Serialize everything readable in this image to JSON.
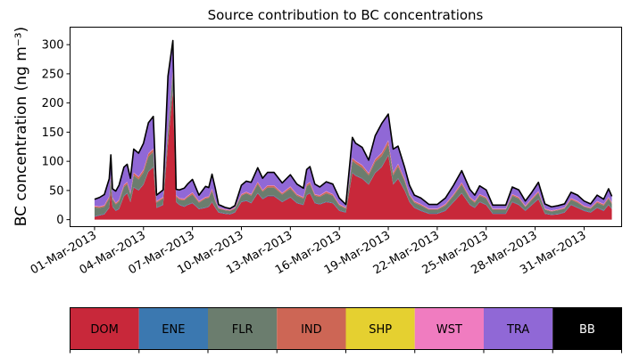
{
  "chart_data": {
    "type": "area",
    "stacked": true,
    "title": "Source contribution to BC concentrations",
    "ylabel": "BC concentration (ng m⁻³)",
    "xlabel": "",
    "ylim": [
      -12,
      330
    ],
    "yticks": [
      0,
      50,
      100,
      150,
      200,
      250,
      300
    ],
    "xticks": [
      "01-Mar-2013",
      "04-Mar-2013",
      "07-Mar-2013",
      "10-Mar-2013",
      "13-Mar-2013",
      "16-Mar-2013",
      "19-Mar-2013",
      "22-Mar-2013",
      "25-Mar-2013",
      "28-Mar-2013",
      "31-Mar-2013"
    ],
    "x_day_range": [
      0.0,
      31.7
    ],
    "xlim_days": [
      -1.5,
      32.3
    ],
    "time": [
      0.0,
      0.3,
      0.6,
      0.9,
      1.0,
      1.1,
      1.3,
      1.5,
      1.8,
      2.0,
      2.2,
      2.4,
      2.7,
      3.0,
      3.3,
      3.6,
      3.8,
      4.2,
      4.5,
      4.8,
      5.0,
      5.2,
      5.5,
      5.7,
      6.0,
      6.4,
      6.8,
      7.0,
      7.2,
      7.4,
      7.6,
      8.0,
      8.3,
      8.6,
      9.0,
      9.3,
      9.6,
      10.0,
      10.3,
      10.6,
      11.0,
      11.5,
      12.0,
      12.4,
      12.8,
      13.0,
      13.2,
      13.5,
      13.8,
      14.2,
      14.6,
      15.0,
      15.4,
      15.8,
      16.0,
      16.4,
      16.8,
      17.2,
      17.6,
      18.0,
      18.3,
      18.6,
      19.0,
      19.3,
      19.6,
      20.0,
      20.5,
      21.0,
      21.5,
      22.0,
      22.5,
      23.0,
      23.3,
      23.6,
      24.0,
      24.4,
      24.8,
      25.2,
      25.6,
      26.0,
      26.4,
      26.8,
      27.2,
      27.6,
      28.0,
      28.4,
      28.8,
      29.2,
      29.6,
      30.0,
      30.4,
      30.8,
      31.2,
      31.5,
      31.7
    ],
    "series": [
      {
        "name": "DOM",
        "color": "#c8283a",
        "values": [
          5,
          7,
          9,
          20,
          50,
          22,
          15,
          18,
          40,
          45,
          30,
          55,
          50,
          60,
          82,
          90,
          20,
          25,
          130,
          220,
          30,
          25,
          22,
          25,
          28,
          18,
          20,
          22,
          30,
          20,
          12,
          10,
          9,
          12,
          30,
          32,
          28,
          45,
          35,
          40,
          40,
          30,
          38,
          28,
          25,
          42,
          45,
          28,
          26,
          30,
          28,
          15,
          12,
          80,
          75,
          70,
          60,
          80,
          90,
          110,
          60,
          70,
          50,
          30,
          20,
          15,
          10,
          10,
          15,
          30,
          45,
          25,
          20,
          30,
          25,
          10,
          10,
          10,
          30,
          25,
          15,
          25,
          35,
          10,
          8,
          9,
          12,
          25,
          20,
          15,
          12,
          20,
          15,
          25,
          18
        ]
      },
      {
        "name": "ENE",
        "color": "#3b78b0",
        "values": [
          1,
          1,
          1,
          1,
          1,
          1,
          1,
          1,
          1,
          1,
          1,
          1,
          1,
          1,
          1,
          1,
          1,
          1,
          1,
          1,
          1,
          1,
          1,
          1,
          1,
          1,
          1,
          1,
          1,
          1,
          1,
          1,
          1,
          1,
          1,
          1,
          1,
          1,
          1,
          1,
          1,
          1,
          1,
          1,
          1,
          1,
          1,
          1,
          1,
          1,
          1,
          1,
          1,
          1,
          1,
          1,
          1,
          1,
          1,
          1,
          1,
          1,
          1,
          1,
          1,
          1,
          1,
          1,
          1,
          1,
          1,
          1,
          1,
          1,
          1,
          1,
          1,
          1,
          1,
          1,
          1,
          1,
          1,
          1,
          1,
          1,
          1,
          1,
          1,
          1,
          1,
          1,
          1,
          1,
          1
        ]
      },
      {
        "name": "FLR",
        "color": "#6b7d6e",
        "values": [
          15,
          12,
          12,
          15,
          20,
          12,
          10,
          12,
          15,
          15,
          12,
          20,
          18,
          20,
          25,
          25,
          8,
          10,
          20,
          30,
          8,
          8,
          10,
          12,
          14,
          10,
          15,
          14,
          18,
          10,
          6,
          5,
          5,
          6,
          10,
          12,
          12,
          15,
          12,
          14,
          14,
          12,
          14,
          12,
          10,
          14,
          15,
          12,
          12,
          14,
          12,
          8,
          6,
          20,
          20,
          18,
          15,
          18,
          18,
          18,
          15,
          20,
          15,
          10,
          8,
          8,
          6,
          6,
          8,
          10,
          14,
          10,
          8,
          10,
          10,
          6,
          6,
          6,
          10,
          10,
          6,
          8,
          10,
          6,
          5,
          6,
          6,
          8,
          8,
          6,
          6,
          8,
          8,
          10,
          8
        ]
      },
      {
        "name": "IND",
        "color": "#cd6655",
        "values": [
          2,
          2,
          2,
          3,
          4,
          2,
          2,
          2,
          3,
          3,
          2,
          4,
          4,
          4,
          5,
          5,
          2,
          2,
          4,
          5,
          2,
          2,
          2,
          2,
          3,
          2,
          2,
          2,
          3,
          2,
          1,
          1,
          1,
          1,
          2,
          2,
          2,
          3,
          2,
          3,
          3,
          2,
          3,
          2,
          2,
          3,
          3,
          2,
          2,
          3,
          2,
          2,
          1,
          4,
          4,
          4,
          3,
          4,
          5,
          6,
          4,
          4,
          3,
          2,
          2,
          2,
          1,
          1,
          2,
          2,
          3,
          2,
          2,
          2,
          2,
          1,
          1,
          1,
          2,
          2,
          1,
          2,
          2,
          1,
          1,
          1,
          1,
          2,
          2,
          1,
          1,
          2,
          2,
          2,
          2
        ]
      },
      {
        "name": "SHP",
        "color": "#e5d030",
        "values": [
          0,
          0,
          0,
          0,
          0,
          0,
          0,
          0,
          0,
          0,
          0,
          0,
          0,
          0,
          0,
          0,
          0,
          0,
          0,
          0,
          0,
          0,
          0,
          0,
          0,
          0,
          0,
          0,
          0,
          0,
          0,
          0,
          0,
          0,
          0,
          0,
          0,
          0,
          0,
          0,
          0,
          0,
          0,
          0,
          0,
          0,
          0,
          0,
          0,
          0,
          0,
          0,
          0,
          0,
          0,
          0,
          0,
          0,
          0,
          0,
          0,
          0,
          0,
          0,
          0,
          0,
          0,
          0,
          0,
          0,
          0,
          0,
          0,
          0,
          0,
          0,
          0,
          0,
          0,
          0,
          0,
          0,
          0,
          0,
          0,
          0,
          0,
          0,
          0,
          0,
          0,
          0,
          0,
          0,
          0
        ]
      },
      {
        "name": "WST",
        "color": "#f07cc0",
        "values": [
          1,
          1,
          1,
          1,
          1,
          1,
          1,
          1,
          1,
          1,
          1,
          1,
          1,
          1,
          1,
          1,
          1,
          1,
          1,
          1,
          1,
          1,
          1,
          1,
          1,
          1,
          1,
          1,
          1,
          1,
          1,
          1,
          1,
          1,
          1,
          1,
          1,
          1,
          1,
          1,
          1,
          1,
          1,
          1,
          1,
          1,
          1,
          1,
          1,
          1,
          1,
          1,
          1,
          1,
          1,
          1,
          1,
          1,
          1,
          1,
          1,
          1,
          1,
          1,
          1,
          1,
          1,
          1,
          1,
          1,
          1,
          1,
          1,
          1,
          1,
          1,
          1,
          1,
          1,
          1,
          1,
          1,
          1,
          1,
          1,
          1,
          1,
          1,
          1,
          1,
          1,
          1,
          1,
          1,
          1
        ]
      },
      {
        "name": "TRA",
        "color": "#9068d6",
        "values": [
          11,
          15,
          18,
          30,
          35,
          15,
          20,
          25,
          30,
          30,
          25,
          40,
          40,
          45,
          52,
          55,
          10,
          12,
          90,
          50,
          10,
          14,
          18,
          20,
          22,
          10,
          18,
          15,
          25,
          20,
          5,
          3,
          2,
          3,
          15,
          18,
          20,
          24,
          20,
          22,
          22,
          17,
          20,
          17,
          15,
          25,
          26,
          17,
          14,
          16,
          17,
          10,
          5,
          35,
          30,
          30,
          22,
          40,
          50,
          45,
          40,
          30,
          20,
          15,
          10,
          10,
          7,
          7,
          10,
          15,
          20,
          13,
          10,
          14,
          12,
          6,
          6,
          6,
          12,
          12,
          8,
          10,
          15,
          8,
          6,
          6,
          6,
          10,
          10,
          8,
          6,
          10,
          8,
          14,
          10
        ]
      },
      {
        "name": "BB",
        "color": "#000000",
        "values": [
          0,
          0,
          0,
          0,
          0,
          0,
          0,
          0,
          0,
          0,
          0,
          0,
          0,
          0,
          0,
          0,
          0,
          0,
          0,
          0,
          0,
          0,
          0,
          0,
          0,
          0,
          0,
          0,
          0,
          0,
          0,
          0,
          0,
          0,
          0,
          0,
          0,
          0,
          0,
          0,
          0,
          0,
          0,
          0,
          0,
          0,
          0,
          0,
          0,
          0,
          0,
          0,
          0,
          0,
          0,
          0,
          0,
          0,
          0,
          0,
          0,
          0,
          0,
          0,
          0,
          0,
          0,
          0,
          0,
          0,
          0,
          0,
          0,
          0,
          0,
          0,
          0,
          0,
          0,
          0,
          0,
          0,
          0,
          0,
          0,
          0,
          0,
          0,
          0,
          0,
          0,
          0,
          0,
          0,
          0
        ]
      }
    ],
    "legend": {
      "placement": "bottom",
      "entries": [
        {
          "label": "DOM",
          "color": "#c8283a",
          "text_color": "#000000"
        },
        {
          "label": "ENE",
          "color": "#3b78b0",
          "text_color": "#000000"
        },
        {
          "label": "FLR",
          "color": "#6b7d6e",
          "text_color": "#000000"
        },
        {
          "label": "IND",
          "color": "#cd6655",
          "text_color": "#000000"
        },
        {
          "label": "SHP",
          "color": "#e5d030",
          "text_color": "#000000"
        },
        {
          "label": "WST",
          "color": "#f07cc0",
          "text_color": "#000000"
        },
        {
          "label": "TRA",
          "color": "#9068d6",
          "text_color": "#000000"
        },
        {
          "label": "BB",
          "color": "#000000",
          "text_color": "#ffffff"
        }
      ]
    },
    "total_line_color": "#000000",
    "grid": false
  }
}
